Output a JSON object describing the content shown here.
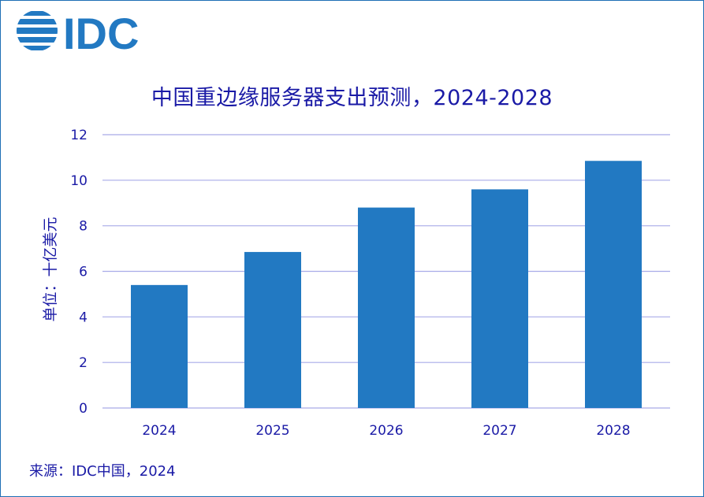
{
  "logo": {
    "text": "IDC",
    "color": "#2279c2"
  },
  "source_text": "来源：IDC中国，2024",
  "colors": {
    "bar": "#2279c2",
    "grid": "#a9abe8",
    "text": "#1a1aa6",
    "frame": "#1f6fb5"
  },
  "chart_data": {
    "type": "bar",
    "title": "中国重边缘服务器支出预测，2024-2028",
    "ylabel": "单位：十亿美元",
    "xlabel": "",
    "categories": [
      "2024",
      "2025",
      "2026",
      "2027",
      "2028"
    ],
    "values": [
      5.4,
      6.85,
      8.8,
      9.6,
      10.85
    ],
    "ylim": [
      0,
      12
    ],
    "yticks": [
      "0",
      "2",
      "4",
      "6",
      "8",
      "10",
      "12"
    ],
    "grid": true,
    "legend": "none"
  }
}
